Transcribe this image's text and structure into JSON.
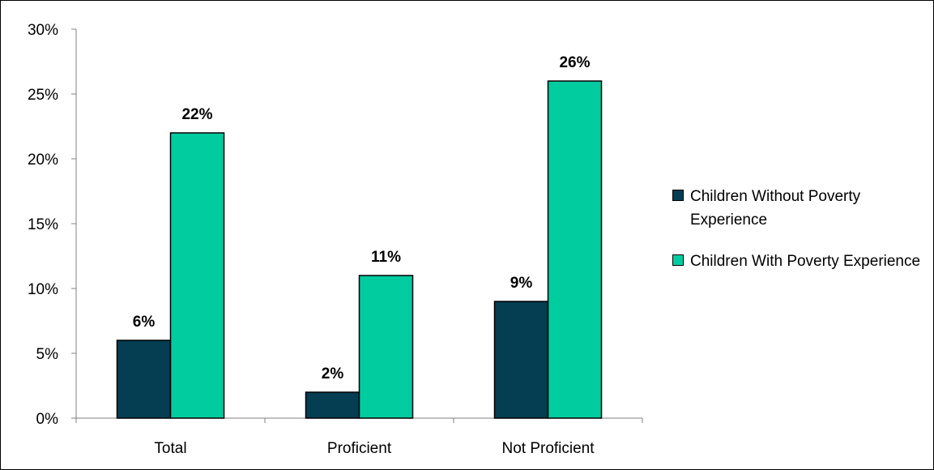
{
  "chart_data": {
    "type": "bar",
    "categories": [
      "Total",
      "Proficient",
      "Not Proficient"
    ],
    "series": [
      {
        "name": "Children Without Poverty Experience",
        "values": [
          6,
          2,
          9
        ],
        "labels": [
          "6%",
          "2%",
          "9%"
        ],
        "color": "#053d52"
      },
      {
        "name": "Children With Poverty Experience",
        "values": [
          22,
          11,
          26
        ],
        "labels": [
          "22%",
          "11%",
          "26%"
        ],
        "color": "#00cc9f"
      }
    ],
    "y_ticks": [
      {
        "value": 0,
        "label": "0%"
      },
      {
        "value": 5,
        "label": "5%"
      },
      {
        "value": 10,
        "label": "10%"
      },
      {
        "value": 15,
        "label": "15%"
      },
      {
        "value": 20,
        "label": "20%"
      },
      {
        "value": 25,
        "label": "25%"
      },
      {
        "value": 30,
        "label": "30%"
      }
    ],
    "ylim": [
      0,
      30
    ],
    "grid": false,
    "legend_position": "right",
    "title": "",
    "xlabel": "",
    "ylabel": ""
  }
}
